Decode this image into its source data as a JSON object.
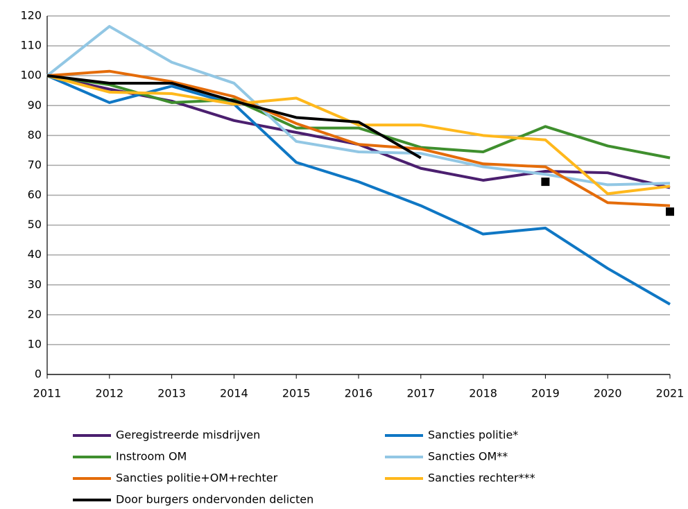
{
  "chart_data": {
    "type": "line",
    "x": [
      2011,
      2012,
      2013,
      2014,
      2015,
      2016,
      2017,
      2018,
      2019,
      2020,
      2021
    ],
    "xlim": [
      2011,
      2021
    ],
    "xticks": [
      2011,
      2012,
      2013,
      2014,
      2015,
      2016,
      2017,
      2018,
      2019,
      2020,
      2021
    ],
    "ylim": [
      0,
      120
    ],
    "yticks": [
      0,
      10,
      20,
      30,
      40,
      50,
      60,
      70,
      80,
      90,
      100,
      110,
      120
    ],
    "grid": true,
    "legend": "bottom",
    "series": [
      {
        "name": "Geregistreerde misdrijven",
        "color": "#4b1f6f",
        "values": [
          100,
          95.5,
          91.5,
          85,
          81,
          77,
          69,
          65,
          68,
          67.5,
          62.5
        ]
      },
      {
        "name": "Sancties politie*",
        "color": "#0f77c4",
        "values": [
          100,
          91,
          96.5,
          90.5,
          71,
          64.5,
          56.5,
          47,
          49,
          35.5,
          23.5
        ]
      },
      {
        "name": "Instroom OM",
        "color": "#3f8f2e",
        "values": [
          100,
          97,
          91,
          92,
          82.5,
          82.5,
          76,
          74.5,
          83,
          76.5,
          72.5
        ]
      },
      {
        "name": "Sancties OM**",
        "color": "#92c7e4",
        "values": [
          100,
          116.5,
          104.5,
          97.5,
          78,
          74.5,
          74,
          69.5,
          67,
          63.5,
          64
        ]
      },
      {
        "name": "Sancties politie+OM+rechter",
        "color": "#e46c0a",
        "values": [
          100,
          101.5,
          98,
          93,
          84,
          77,
          75.5,
          70.5,
          69.5,
          57.5,
          56.5
        ]
      },
      {
        "name": "Sancties rechter***",
        "color": "#ffb81c",
        "values": [
          100,
          94.5,
          94,
          90.5,
          92.5,
          83.5,
          83.5,
          80,
          78.5,
          60.5,
          63
        ]
      },
      {
        "name": "Door burgers ondervonden delicten",
        "color": "#000000",
        "values": [
          100,
          97.5,
          97.5,
          91.5,
          86,
          84.5,
          72.5,
          null,
          null,
          null,
          null
        ]
      },
      {
        "color": "#000000",
        "marker": "square",
        "x": [
          2019,
          2021
        ],
        "values": [
          64.5,
          54.5
        ]
      }
    ]
  }
}
